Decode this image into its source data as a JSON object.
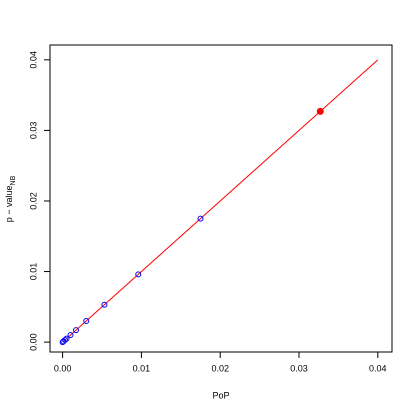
{
  "chart_data": {
    "type": "scatter",
    "x_label": "PoP",
    "y_label": "p − value",
    "y_label_sub": "NB",
    "xlim": [
      -0.0016,
      0.0418
    ],
    "ylim": [
      -0.0014,
      0.0421
    ],
    "xticks": [
      {
        "value": 0,
        "label": "0.00"
      },
      {
        "value": 0.01,
        "label": "0.01"
      },
      {
        "value": 0.02,
        "label": "0.02"
      },
      {
        "value": 0.03,
        "label": "0.03"
      },
      {
        "value": 0.04,
        "label": "0.04"
      }
    ],
    "yticks": [
      {
        "value": 0,
        "label": "0.00"
      },
      {
        "value": 0.01,
        "label": "0.01"
      },
      {
        "value": 0.02,
        "label": "0.02"
      },
      {
        "value": 0.03,
        "label": "0.03"
      },
      {
        "value": 0.04,
        "label": "0.04"
      }
    ],
    "series": [
      {
        "color": "#0000ff",
        "marker": "open",
        "x": [
          0,
          0.0001,
          0.0003,
          0.0005,
          0.001,
          0.0017,
          0.003,
          0.0053,
          0.0096,
          0.0175
        ],
        "values": [
          0,
          0.0001,
          0.0003,
          0.0005,
          0.001,
          0.0017,
          0.003,
          0.0053,
          0.0096,
          0.0175
        ]
      },
      {
        "color": "#ff0000",
        "marker": "filled",
        "x": [
          0.0327
        ],
        "values": [
          0.0327
        ]
      }
    ],
    "lines": [
      {
        "color": "#ff0000",
        "x": [
          0,
          0.04
        ],
        "values": [
          0,
          0.04
        ]
      }
    ]
  }
}
